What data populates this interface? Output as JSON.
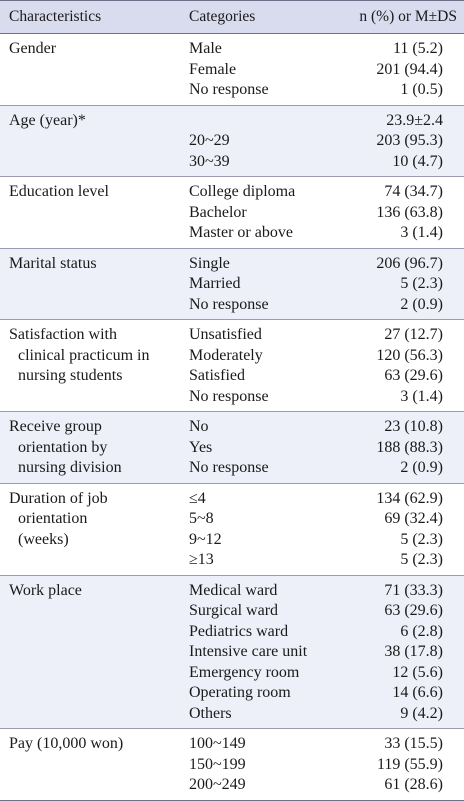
{
  "header": {
    "characteristics": "Characteristics",
    "categories": "Categories",
    "value": "n (%) or M±DS"
  },
  "groups": [
    {
      "label": [
        "Gender"
      ],
      "rows": [
        {
          "cat": "Male",
          "val": "11 (5.2)"
        },
        {
          "cat": "Female",
          "val": "201 (94.4)"
        },
        {
          "cat": "No response",
          "val": "1 (0.5)"
        }
      ]
    },
    {
      "label": [
        "Age (year)*"
      ],
      "rows": [
        {
          "cat": "",
          "val": "23.9±2.4"
        },
        {
          "cat": "20~29",
          "val": "203 (95.3)"
        },
        {
          "cat": "30~39",
          "val": "10 (4.7)"
        }
      ]
    },
    {
      "label": [
        "Education level"
      ],
      "rows": [
        {
          "cat": "College diploma",
          "val": "74 (34.7)"
        },
        {
          "cat": "Bachelor",
          "val": "136 (63.8)"
        },
        {
          "cat": "Master or above",
          "val": "3 (1.4)"
        }
      ]
    },
    {
      "label": [
        "Marital status"
      ],
      "rows": [
        {
          "cat": "Single",
          "val": "206 (96.7)"
        },
        {
          "cat": "Married",
          "val": "5 (2.3)"
        },
        {
          "cat": "No response",
          "val": "2 (0.9)"
        }
      ]
    },
    {
      "label": [
        "Satisfaction with",
        "clinical practicum in",
        "nursing students"
      ],
      "rows": [
        {
          "cat": "Unsatisfied",
          "val": "27 (12.7)"
        },
        {
          "cat": "Moderately",
          "val": "120 (56.3)"
        },
        {
          "cat": "Satisfied",
          "val": "63 (29.6)"
        },
        {
          "cat": "No response",
          "val": "3 (1.4)"
        }
      ]
    },
    {
      "label": [
        "Receive group",
        "orientation by",
        "nursing division"
      ],
      "rows": [
        {
          "cat": "No",
          "val": "23 (10.8)"
        },
        {
          "cat": "Yes",
          "val": "188 (88.3)"
        },
        {
          "cat": "No response",
          "val": "2 (0.9)"
        }
      ]
    },
    {
      "label": [
        "Duration of job",
        "orientation",
        "(weeks)"
      ],
      "rows": [
        {
          "cat": "≤4",
          "val": "134 (62.9)"
        },
        {
          "cat": "5~8",
          "val": "69 (32.4)"
        },
        {
          "cat": "9~12",
          "val": "5 (2.3)"
        },
        {
          "cat": "≥13",
          "val": "5 (2.3)"
        }
      ]
    },
    {
      "label": [
        "Work place"
      ],
      "rows": [
        {
          "cat": "Medical ward",
          "val": "71 (33.3)"
        },
        {
          "cat": "Surgical ward",
          "val": "63 (29.6)"
        },
        {
          "cat": "Pediatrics ward",
          "val": "6 (2.8)"
        },
        {
          "cat": "Intensive care unit",
          "val": "38 (17.8)"
        },
        {
          "cat": "Emergency room",
          "val": "12 (5.6)"
        },
        {
          "cat": "Operating room",
          "val": "14 (6.6)"
        },
        {
          "cat": "Others",
          "val": "9 (4.2)"
        }
      ]
    },
    {
      "label": [
        "Pay (10,000 won)"
      ],
      "rows": [
        {
          "cat": "100~149",
          "val": "33 (15.5)"
        },
        {
          "cat": "150~199",
          "val": "119 (55.9)"
        },
        {
          "cat": "200~249",
          "val": "61 (28.6)"
        }
      ]
    }
  ]
}
